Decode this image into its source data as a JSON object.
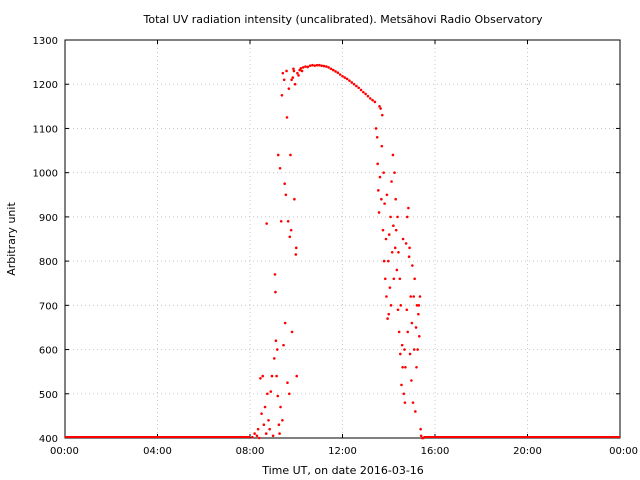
{
  "chart_data": {
    "type": "scatter",
    "title": "Total UV radiation intensity (uncalibrated). Metsähovi Radio Observatory",
    "xlabel": "Time UT, on date 2016-03-16",
    "ylabel": "Arbitrary unit",
    "xlim": [
      0,
      24
    ],
    "ylim": [
      400,
      1300
    ],
    "xticks": [
      {
        "value": 0,
        "label": "00:00"
      },
      {
        "value": 4,
        "label": "04:00"
      },
      {
        "value": 8,
        "label": "08:00"
      },
      {
        "value": 12,
        "label": "12:00"
      },
      {
        "value": 16,
        "label": "16:00"
      },
      {
        "value": 20,
        "label": "20:00"
      },
      {
        "value": 24,
        "label": "00:00"
      }
    ],
    "yticks": [
      {
        "value": 400,
        "label": "400"
      },
      {
        "value": 500,
        "label": "500"
      },
      {
        "value": 600,
        "label": "600"
      },
      {
        "value": 700,
        "label": "700"
      },
      {
        "value": 800,
        "label": "800"
      },
      {
        "value": 900,
        "label": "900"
      },
      {
        "value": 1000,
        "label": "1000"
      },
      {
        "value": 1100,
        "label": "1100"
      },
      {
        "value": 1200,
        "label": "1200"
      },
      {
        "value": 1300,
        "label": "1300"
      }
    ],
    "grid": true,
    "series": [
      {
        "color": "#ff0000",
        "points": [
          [
            8.1,
            402
          ],
          [
            8.2,
            410
          ],
          [
            8.3,
            405
          ],
          [
            8.35,
            420
          ],
          [
            8.4,
            400
          ],
          [
            8.45,
            535
          ],
          [
            8.5,
            455
          ],
          [
            8.55,
            540
          ],
          [
            8.6,
            430
          ],
          [
            8.65,
            470
          ],
          [
            8.7,
            410
          ],
          [
            8.72,
            885
          ],
          [
            8.75,
            500
          ],
          [
            8.8,
            440
          ],
          [
            8.85,
            420
          ],
          [
            8.9,
            505
          ],
          [
            8.95,
            540
          ],
          [
            9.0,
            405
          ],
          [
            9.05,
            580
          ],
          [
            9.08,
            770
          ],
          [
            9.1,
            730
          ],
          [
            9.12,
            620
          ],
          [
            9.15,
            540
          ],
          [
            9.18,
            600
          ],
          [
            9.2,
            495
          ],
          [
            9.22,
            1040
          ],
          [
            9.25,
            430
          ],
          [
            9.28,
            410
          ],
          [
            9.3,
            1010
          ],
          [
            9.32,
            470
          ],
          [
            9.35,
            890
          ],
          [
            9.38,
            1175
          ],
          [
            9.4,
            440
          ],
          [
            9.42,
            1225
          ],
          [
            9.45,
            610
          ],
          [
            9.48,
            1210
          ],
          [
            9.5,
            975
          ],
          [
            9.52,
            660
          ],
          [
            9.55,
            950
          ],
          [
            9.58,
            1230
          ],
          [
            9.6,
            1125
          ],
          [
            9.62,
            525
          ],
          [
            9.65,
            890
          ],
          [
            9.68,
            1190
          ],
          [
            9.7,
            500
          ],
          [
            9.72,
            855
          ],
          [
            9.75,
            1040
          ],
          [
            9.78,
            870
          ],
          [
            9.8,
            1210
          ],
          [
            9.82,
            640
          ],
          [
            9.85,
            1215
          ],
          [
            9.88,
            1235
          ],
          [
            9.9,
            1230
          ],
          [
            9.92,
            940
          ],
          [
            9.95,
            1200
          ],
          [
            9.98,
            815
          ],
          [
            10.0,
            830
          ],
          [
            10.02,
            540
          ],
          [
            10.05,
            1225
          ],
          [
            10.1,
            1220
          ],
          [
            10.15,
            1232
          ],
          [
            10.2,
            1236
          ],
          [
            10.25,
            1230
          ],
          [
            10.3,
            1238
          ],
          [
            10.4,
            1240
          ],
          [
            10.5,
            1239
          ],
          [
            10.6,
            1242
          ],
          [
            10.7,
            1243
          ],
          [
            10.8,
            1242
          ],
          [
            10.9,
            1243
          ],
          [
            11.0,
            1243
          ],
          [
            11.1,
            1242
          ],
          [
            11.2,
            1241
          ],
          [
            11.3,
            1240
          ],
          [
            11.4,
            1238
          ],
          [
            11.5,
            1235
          ],
          [
            11.6,
            1232
          ],
          [
            11.7,
            1229
          ],
          [
            11.8,
            1226
          ],
          [
            11.9,
            1222
          ],
          [
            12.0,
            1218
          ],
          [
            12.1,
            1215
          ],
          [
            12.2,
            1212
          ],
          [
            12.3,
            1208
          ],
          [
            12.4,
            1204
          ],
          [
            12.5,
            1200
          ],
          [
            12.6,
            1196
          ],
          [
            12.7,
            1192
          ],
          [
            12.8,
            1187
          ],
          [
            12.9,
            1182
          ],
          [
            13.0,
            1178
          ],
          [
            13.1,
            1173
          ],
          [
            13.2,
            1168
          ],
          [
            13.3,
            1164
          ],
          [
            13.4,
            1160
          ],
          [
            13.45,
            1100
          ],
          [
            13.5,
            1080
          ],
          [
            13.52,
            1020
          ],
          [
            13.55,
            960
          ],
          [
            13.58,
            910
          ],
          [
            13.6,
            1150
          ],
          [
            13.62,
            990
          ],
          [
            13.65,
            1145
          ],
          [
            13.68,
            940
          ],
          [
            13.7,
            1060
          ],
          [
            13.72,
            1130
          ],
          [
            13.75,
            870
          ],
          [
            13.78,
            1000
          ],
          [
            13.8,
            800
          ],
          [
            13.82,
            930
          ],
          [
            13.85,
            760
          ],
          [
            13.88,
            850
          ],
          [
            13.9,
            720
          ],
          [
            13.92,
            950
          ],
          [
            13.95,
            670
          ],
          [
            13.98,
            800
          ],
          [
            14.0,
            680
          ],
          [
            14.02,
            860
          ],
          [
            14.05,
            740
          ],
          [
            14.08,
            900
          ],
          [
            14.1,
            700
          ],
          [
            14.12,
            980
          ],
          [
            14.15,
            820
          ],
          [
            14.18,
            1040
          ],
          [
            14.2,
            880
          ],
          [
            14.22,
            760
          ],
          [
            14.25,
            1000
          ],
          [
            14.28,
            830
          ],
          [
            14.3,
            940
          ],
          [
            14.32,
            870
          ],
          [
            14.35,
            780
          ],
          [
            14.38,
            900
          ],
          [
            14.4,
            690
          ],
          [
            14.42,
            820
          ],
          [
            14.45,
            640
          ],
          [
            14.48,
            760
          ],
          [
            14.5,
            590
          ],
          [
            14.52,
            700
          ],
          [
            14.55,
            520
          ],
          [
            14.58,
            610
          ],
          [
            14.6,
            560
          ],
          [
            14.62,
            850
          ],
          [
            14.65,
            500
          ],
          [
            14.68,
            600
          ],
          [
            14.7,
            480
          ],
          [
            14.72,
            560
          ],
          [
            14.75,
            840
          ],
          [
            14.78,
            690
          ],
          [
            14.8,
            900
          ],
          [
            14.82,
            640
          ],
          [
            14.85,
            920
          ],
          [
            14.88,
            810
          ],
          [
            14.9,
            830
          ],
          [
            14.92,
            590
          ],
          [
            14.95,
            720
          ],
          [
            14.98,
            530
          ],
          [
            15.0,
            660
          ],
          [
            15.02,
            790
          ],
          [
            15.05,
            480
          ],
          [
            15.08,
            720
          ],
          [
            15.1,
            600
          ],
          [
            15.12,
            760
          ],
          [
            15.15,
            460
          ],
          [
            15.18,
            650
          ],
          [
            15.2,
            560
          ],
          [
            15.22,
            700
          ],
          [
            15.25,
            600
          ],
          [
            15.28,
            680
          ],
          [
            15.3,
            700
          ],
          [
            15.32,
            630
          ],
          [
            15.35,
            720
          ],
          [
            15.38,
            420
          ],
          [
            15.4,
            405
          ],
          [
            15.45,
            400
          ],
          [
            15.5,
            400
          ]
        ]
      }
    ],
    "baseline": {
      "value": 400,
      "segments": [
        [
          0,
          8.0
        ],
        [
          15.5,
          24
        ]
      ]
    }
  }
}
